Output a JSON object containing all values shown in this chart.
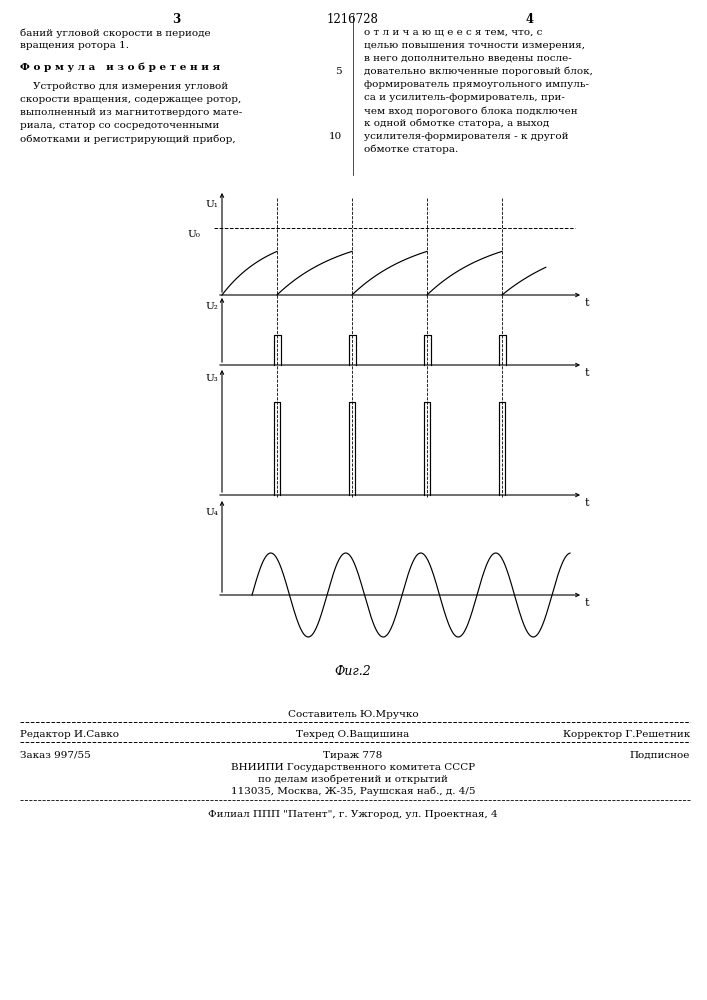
{
  "page_number_left": "3",
  "page_number_center": "1216728",
  "page_number_right": "4",
  "text_left_line1": "баний угловой скорости в периоде",
  "text_left_line2": "вращения ротора 1.",
  "formula_heading": "Ф о р м у л а   и з о б р е т е н и я",
  "text_left_body": [
    "    Устройство для измерения угловой",
    "скорости вращения, содержащее ротор,",
    "выполненный из магнитотвердого мате-",
    "риала, статор со сосредоточенными",
    "обмотками и регистрирующий прибор,"
  ],
  "text_right_col": [
    "о т л и ч а ю щ е е с я тем, что, с",
    "целью повышения точности измерения,",
    "в него дополнительно введены после-",
    "довательно включенные пороговый блок,",
    "формирователь прямоугольного импуль-",
    "са и усилитель-формирователь, при-",
    "чем вход порогового блока подключен",
    "к одной обмотке статора, а выход",
    "усилителя-формирователя - к другой",
    "обмотке статора."
  ],
  "fig_caption": "Фиг.2",
  "bottom_editor": "Редактор И.Савко",
  "bottom_composer": "Составитель Ю.Мручко",
  "bottom_techred": "Техред О.Ващишина",
  "bottom_corrector": "Корректор Г.Решетник",
  "bottom_order": "Заказ 997/55",
  "bottom_tirazh": "Тираж 778",
  "bottom_podpisnoe": "Подписное",
  "bottom_vnipi": "ВНИИПИ Государственного комитета СССР",
  "bottom_po_delam": "по делам изобретений и открытий",
  "bottom_address": "113035, Москва, Ж-35, Раушская наб., д. 4/5",
  "bottom_filial": "Филиал ППП \"Патент\", г. Ужгород, ул. Проектная, 4",
  "bg_color": "#ffffff"
}
